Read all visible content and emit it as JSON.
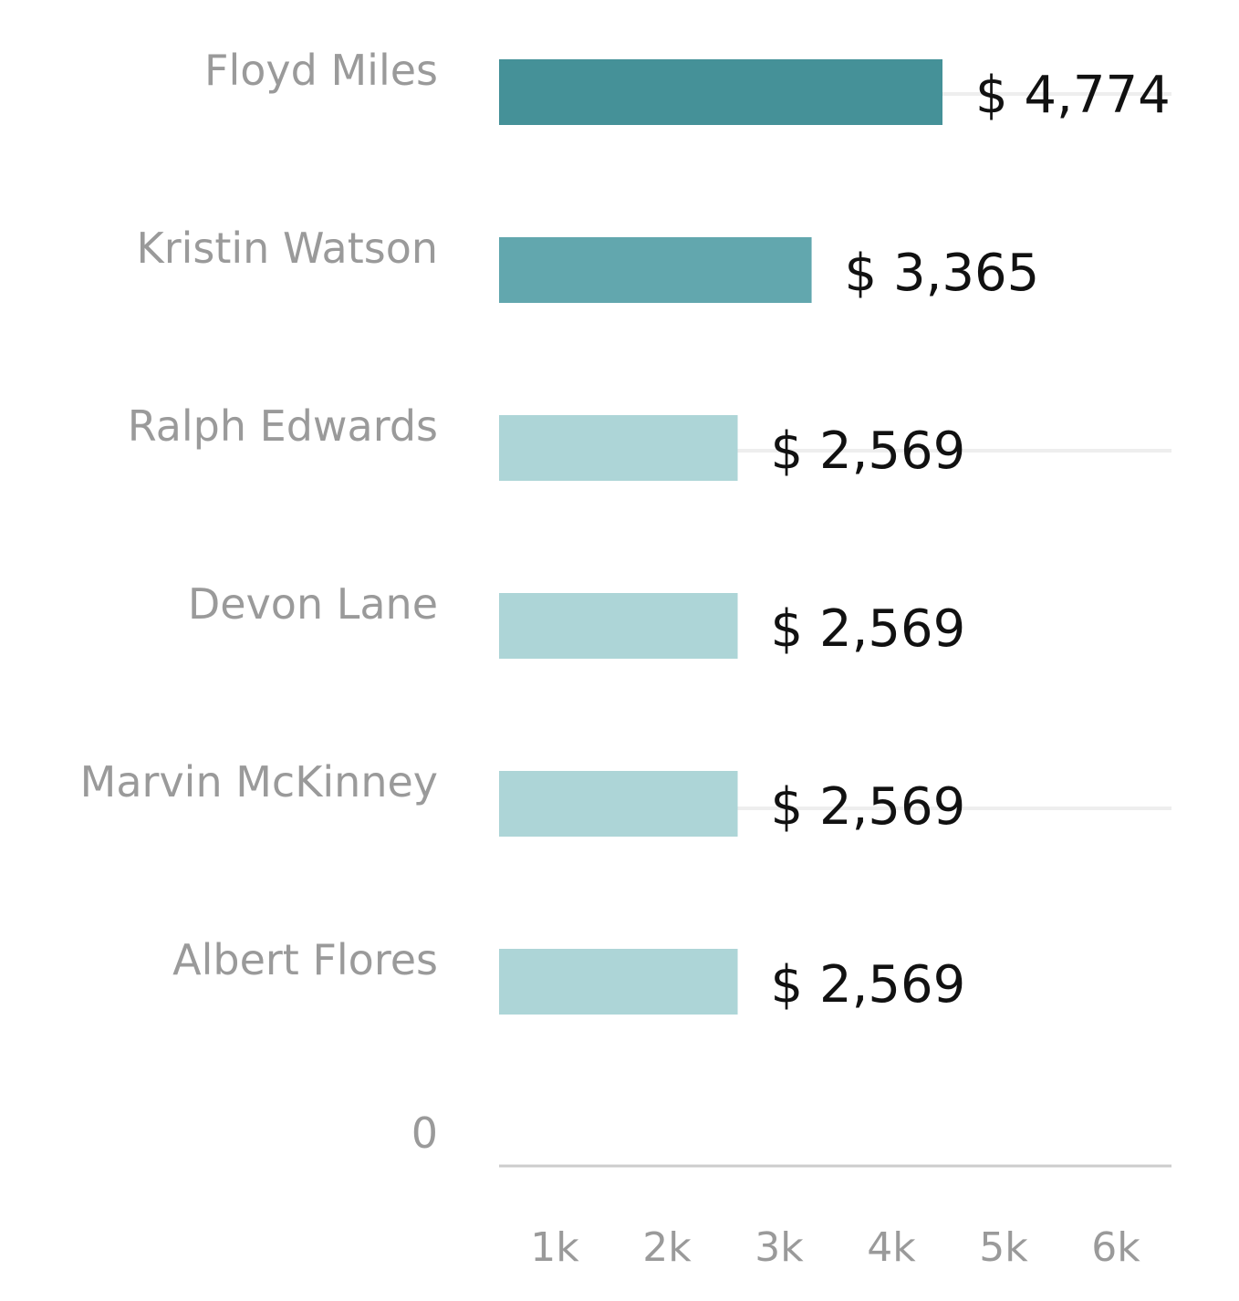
{
  "chart_data": {
    "type": "bar",
    "orientation": "horizontal",
    "categories": [
      "Floyd Miles",
      "Kristin Watson",
      "Ralph Edwards",
      "Devon Lane",
      "Marvin McKinney",
      "Albert Flores"
    ],
    "values": [
      4774,
      3365,
      2569,
      2569,
      2569,
      2569
    ],
    "value_labels": [
      "$ 4,774",
      "$ 3,365",
      "$ 2,569",
      "$ 2,569",
      "$ 2,569",
      "$ 2,569"
    ],
    "zero_label": "0",
    "x_ticks": [
      "1k",
      "2k",
      "3k",
      "4k",
      "5k",
      "6k"
    ],
    "xlim": [
      0,
      6000
    ],
    "grid": "horizontal lines",
    "colors": {
      "primary": "#459198",
      "secondary": "#62a7ae",
      "muted": "#add5d7",
      "category_text": "#9a9a9a",
      "value_text": "#111111",
      "axis": "#cccccc",
      "grid": "#eeeeee"
    }
  }
}
